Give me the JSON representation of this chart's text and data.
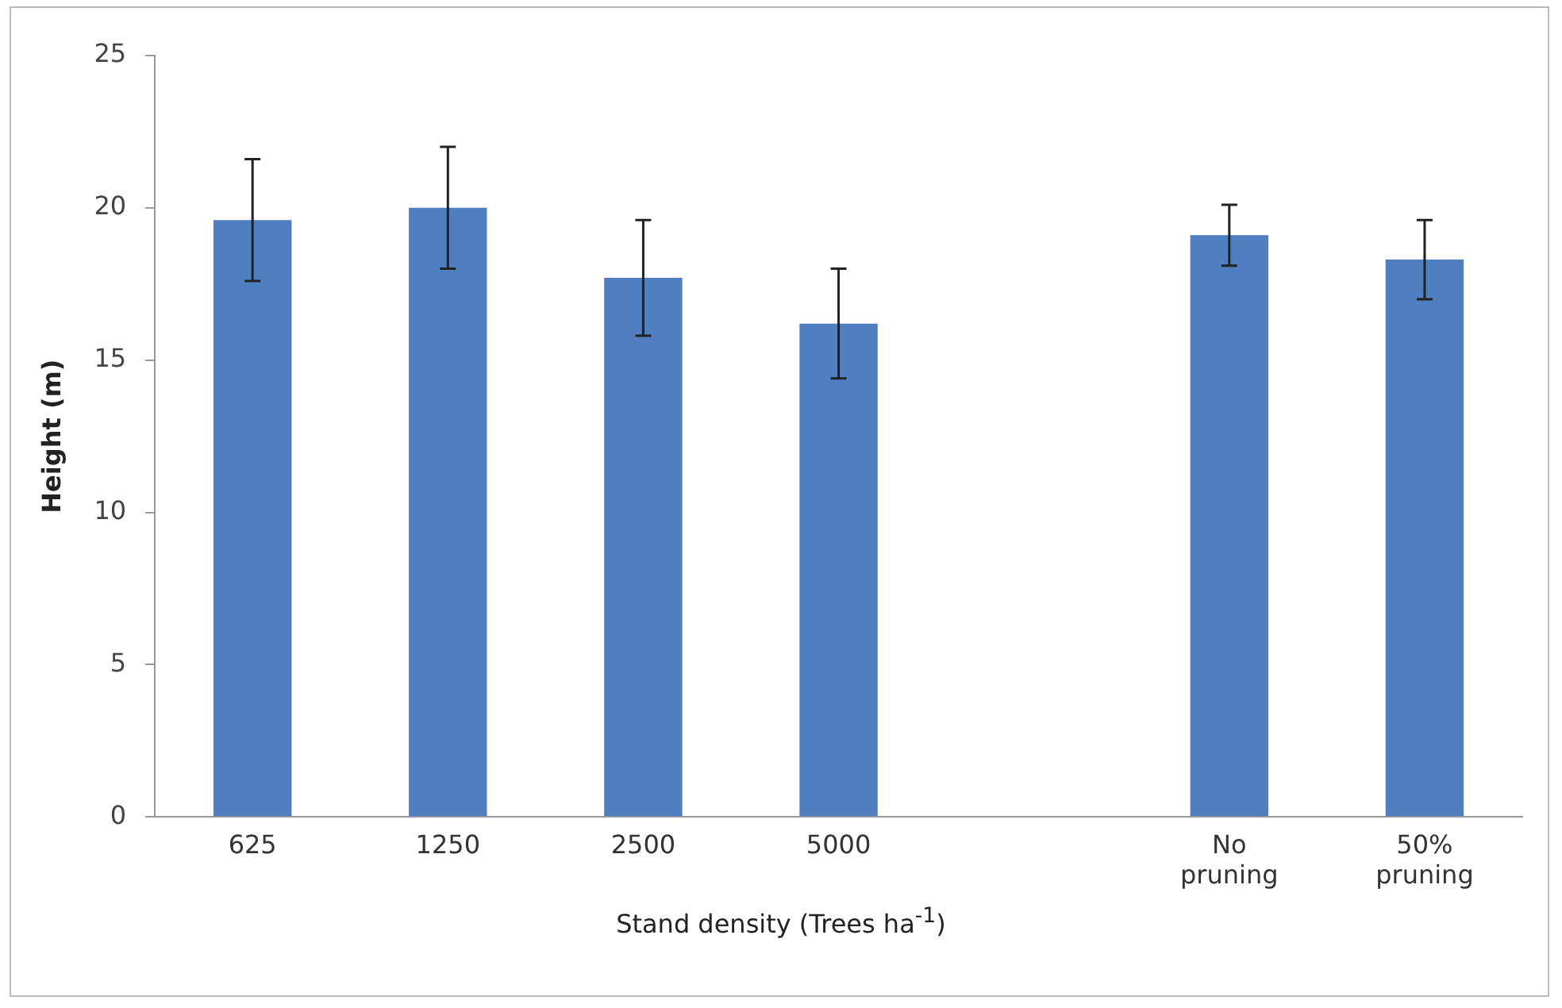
{
  "chart_data": {
    "type": "bar",
    "xlabel": "Stand density (Trees ha$^{-1}$)",
    "ylabel": "Height (m)",
    "categories": [
      "625",
      "1250",
      "2500",
      "5000",
      null,
      "No pruning",
      "50% pruning"
    ],
    "values": [
      19.6,
      20,
      17.7,
      16.2,
      null,
      19.1,
      18.3
    ],
    "errors": [
      2,
      2,
      1.9,
      1.8,
      null,
      1,
      1.3
    ],
    "color": "#4f7fc0",
    "ylim": [
      0,
      25
    ],
    "yticks": [
      0,
      5,
      10,
      15,
      20,
      25
    ],
    "grid": false,
    "legend": false
  }
}
